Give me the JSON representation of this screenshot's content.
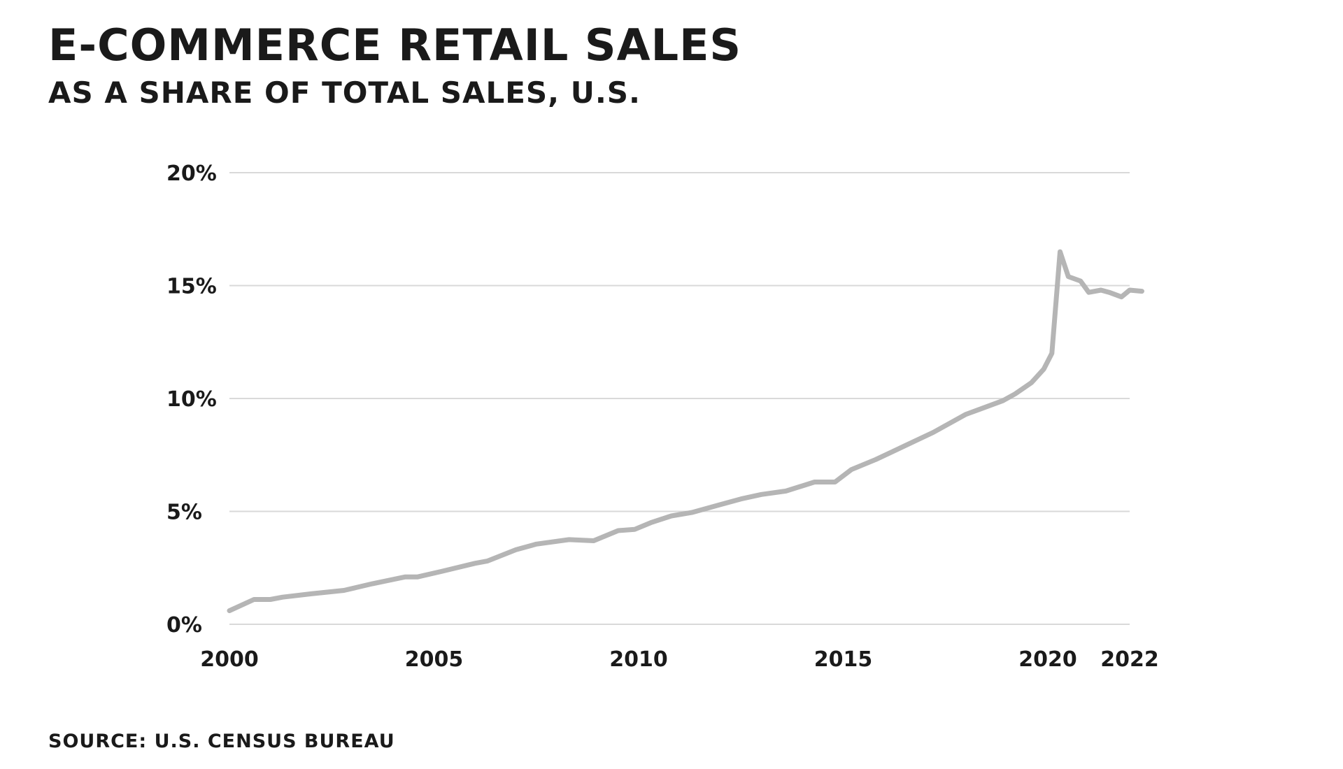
{
  "header": {
    "title": "E-COMMERCE RETAIL SALES",
    "subtitle": "AS A SHARE OF TOTAL SALES, U.S."
  },
  "footer": {
    "source": "SOURCE: U.S. CENSUS BUREAU"
  },
  "colors": {
    "line": "#b5b5b5",
    "grid": "#d9d9d9",
    "text": "#1a1a1a"
  },
  "chart_data": {
    "type": "line",
    "title": "E-COMMERCE RETAIL SALES",
    "subtitle": "AS A SHARE OF TOTAL SALES, U.S.",
    "xlabel": "",
    "ylabel": "",
    "xlim": [
      2000,
      2022
    ],
    "ylim": [
      0,
      20
    ],
    "grid": true,
    "legend": "none",
    "x_ticks": [
      2000,
      2005,
      2010,
      2015,
      2020,
      2022
    ],
    "x_tick_labels": [
      "2000",
      "2005",
      "2010",
      "2015",
      "2020",
      "2022"
    ],
    "y_ticks": [
      0,
      5,
      10,
      15,
      20
    ],
    "y_tick_labels": [
      "0%",
      "5%",
      "10%",
      "15%",
      "20%"
    ],
    "series": [
      {
        "x": [
          2000.0,
          2000.6,
          2001.0,
          2001.3,
          2002.0,
          2002.8,
          2003.5,
          2004.3,
          2004.6,
          2005.2,
          2006.0,
          2006.3,
          2007.0,
          2007.5,
          2008.3,
          2008.9,
          2009.5,
          2009.9,
          2010.3,
          2010.8,
          2011.3,
          2012.0,
          2012.5,
          2013.0,
          2013.6,
          2014.3,
          2014.8,
          2015.2,
          2015.8,
          2016.5,
          2017.2,
          2018.0,
          2018.9,
          2019.2,
          2019.6,
          2019.9,
          2020.1,
          2020.3,
          2020.5,
          2020.8,
          2021.0,
          2021.3,
          2021.5,
          2021.8,
          2022.0,
          2022.3
        ],
        "y": [
          0.6,
          1.1,
          1.1,
          1.2,
          1.35,
          1.5,
          1.8,
          2.1,
          2.1,
          2.35,
          2.7,
          2.8,
          3.3,
          3.55,
          3.75,
          3.7,
          4.15,
          4.2,
          4.5,
          4.8,
          4.95,
          5.3,
          5.55,
          5.75,
          5.9,
          6.3,
          6.3,
          6.85,
          7.3,
          7.9,
          8.5,
          9.3,
          9.9,
          10.2,
          10.7,
          11.3,
          12.0,
          16.5,
          15.4,
          15.2,
          14.7,
          14.8,
          14.7,
          14.5,
          14.8,
          14.75
        ]
      }
    ]
  }
}
